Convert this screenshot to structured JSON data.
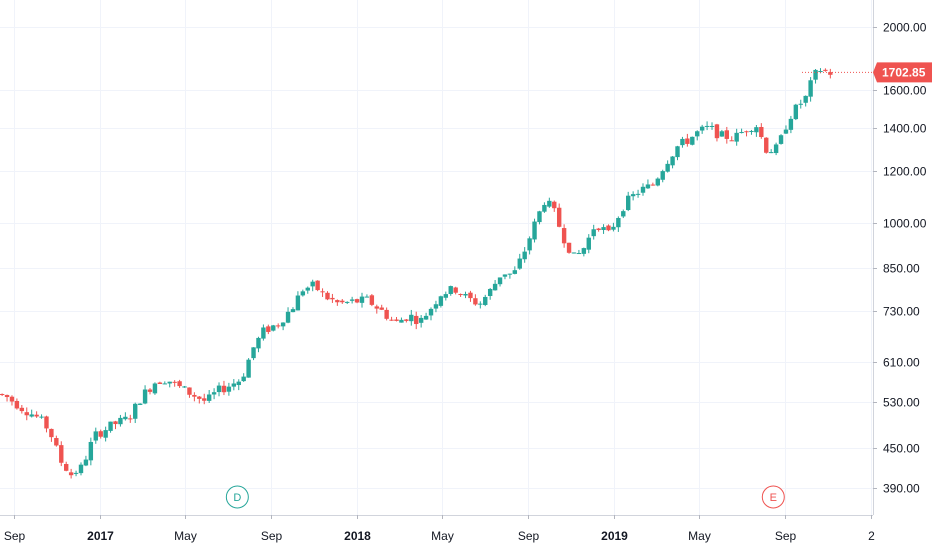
{
  "chart_data": {
    "type": "candlestick",
    "y_scale": "log",
    "ylim": [
      355,
      2200
    ],
    "xlim": [
      "2016-08-12",
      "2020-01-05"
    ],
    "grid": true,
    "colors": {
      "up": "#26a69a",
      "down": "#ef5350",
      "grid": "#f0f3fa",
      "axis_text": "#131722",
      "price_tag": "#ef5350"
    },
    "y_ticks": [
      "2000.00",
      "1600.00",
      "1400.00",
      "1200.00",
      "1000.00",
      "850.00",
      "730.00",
      "610.00",
      "530.00",
      "450.00",
      "390.00"
    ],
    "y_tick_values": [
      2000,
      1600,
      1400,
      1200,
      1000,
      850,
      730,
      610,
      530,
      450,
      390
    ],
    "x_ticks": [
      {
        "label": "Sep",
        "date": "2016-09-01",
        "bold": false
      },
      {
        "label": "2017",
        "date": "2017-01-01",
        "bold": true
      },
      {
        "label": "May",
        "date": "2017-05-01",
        "bold": false
      },
      {
        "label": "Sep",
        "date": "2017-09-01",
        "bold": false
      },
      {
        "label": "2018",
        "date": "2018-01-01",
        "bold": true
      },
      {
        "label": "May",
        "date": "2018-05-01",
        "bold": false
      },
      {
        "label": "Sep",
        "date": "2018-09-01",
        "bold": false
      },
      {
        "label": "2019",
        "date": "2019-01-01",
        "bold": true
      },
      {
        "label": "May",
        "date": "2019-05-01",
        "bold": false
      },
      {
        "label": "Sep",
        "date": "2019-09-01",
        "bold": false
      },
      {
        "label": "2",
        "date": "2020-01-01",
        "bold": false
      }
    ],
    "last_price": {
      "label": "1702.85",
      "value": 1702.85
    },
    "markers": [
      {
        "label": "D",
        "date": "2017-07-15",
        "color": "#26a69a"
      },
      {
        "label": "E",
        "date": "2019-08-15",
        "color": "#ef5350"
      }
    ],
    "anchors": [
      [
        "2016-08-12",
        545
      ],
      [
        "2016-08-25",
        540
      ],
      [
        "2016-09-15",
        520
      ],
      [
        "2016-10-10",
        500
      ],
      [
        "2016-10-25",
        480
      ],
      [
        "2016-11-10",
        430
      ],
      [
        "2016-11-25",
        410
      ],
      [
        "2016-12-10",
        420
      ],
      [
        "2016-12-28",
        470
      ],
      [
        "2017-01-25",
        490
      ],
      [
        "2017-02-15",
        500
      ],
      [
        "2017-03-05",
        540
      ],
      [
        "2017-03-25",
        570
      ],
      [
        "2017-04-10",
        575
      ],
      [
        "2017-04-25",
        560
      ],
      [
        "2017-05-15",
        545
      ],
      [
        "2017-06-05",
        530
      ],
      [
        "2017-06-20",
        550
      ],
      [
        "2017-07-05",
        560
      ],
      [
        "2017-07-25",
        575
      ],
      [
        "2017-08-10",
        640
      ],
      [
        "2017-08-25",
        680
      ],
      [
        "2017-09-15",
        700
      ],
      [
        "2017-10-05",
        740
      ],
      [
        "2017-10-20",
        790
      ],
      [
        "2017-11-05",
        800
      ],
      [
        "2017-11-20",
        770
      ],
      [
        "2017-12-10",
        750
      ],
      [
        "2017-12-28",
        755
      ],
      [
        "2018-01-20",
        760
      ],
      [
        "2018-02-10",
        730
      ],
      [
        "2018-02-28",
        700
      ],
      [
        "2018-03-20",
        720
      ],
      [
        "2018-04-05",
        705
      ],
      [
        "2018-04-20",
        740
      ],
      [
        "2018-05-05",
        780
      ],
      [
        "2018-05-25",
        790
      ],
      [
        "2018-06-10",
        765
      ],
      [
        "2018-06-28",
        750
      ],
      [
        "2018-07-15",
        790
      ],
      [
        "2018-07-30",
        840
      ],
      [
        "2018-08-15",
        830
      ],
      [
        "2018-08-30",
        900
      ],
      [
        "2018-09-15",
        1000
      ],
      [
        "2018-09-28",
        1080
      ],
      [
        "2018-10-10",
        1050
      ],
      [
        "2018-10-25",
        950
      ],
      [
        "2018-11-10",
        880
      ],
      [
        "2018-11-25",
        920
      ],
      [
        "2018-12-10",
        1000
      ],
      [
        "2018-12-28",
        960
      ],
      [
        "2019-01-20",
        1070
      ],
      [
        "2019-02-10",
        1120
      ],
      [
        "2019-02-28",
        1140
      ],
      [
        "2019-03-20",
        1240
      ],
      [
        "2019-04-05",
        1310
      ],
      [
        "2019-04-20",
        1340
      ],
      [
        "2019-05-05",
        1380
      ],
      [
        "2019-05-20",
        1400
      ],
      [
        "2019-06-05",
        1360
      ],
      [
        "2019-06-25",
        1350
      ],
      [
        "2019-07-10",
        1390
      ],
      [
        "2019-07-25",
        1420
      ],
      [
        "2019-08-10",
        1290
      ],
      [
        "2019-08-25",
        1300
      ],
      [
        "2019-09-10",
        1450
      ],
      [
        "2019-09-25",
        1520
      ],
      [
        "2019-10-05",
        1560
      ],
      [
        "2019-10-15",
        1680
      ],
      [
        "2019-10-25",
        1720
      ],
      [
        "2019-11-05",
        1700
      ]
    ]
  }
}
